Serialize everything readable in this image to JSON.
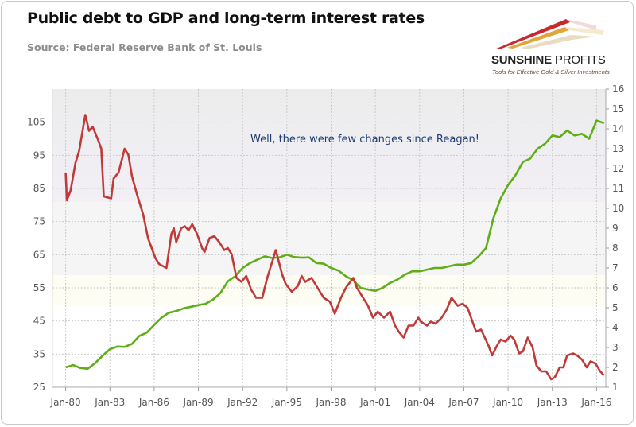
{
  "title": "Public debt to GDP and long-term interest rates",
  "source": "Source: Federal Reserve Bank of St. Louis",
  "logo": {
    "name_bold": "SUNSHINE",
    "name_light": "PROFITS",
    "tagline": "Tools for Effective Gold & Silver Investments"
  },
  "chart_data": {
    "type": "line",
    "title": "Public debt to GDP and long-term interest rates",
    "annotation": "Well, there were few changes since Reagan!",
    "x_ticks": [
      "Jan-80",
      "Jan-83",
      "Jan-86",
      "Jan-89",
      "Jan-92",
      "Jan-95",
      "Jan-98",
      "Jan-01",
      "Jan-04",
      "Jan-07",
      "Jan-10",
      "Jan-13",
      "Jan-16"
    ],
    "xlim": [
      "1980-01",
      "2016-07"
    ],
    "y_left": {
      "ylim": [
        25,
        115
      ],
      "ticks": [
        25,
        35,
        45,
        55,
        65,
        75,
        85,
        95,
        105
      ]
    },
    "y_right": {
      "ylim": [
        1,
        16
      ],
      "ticks": [
        1,
        2,
        3,
        4,
        5,
        6,
        7,
        8,
        9,
        10,
        11,
        12,
        13,
        14,
        15,
        16
      ]
    },
    "grid": true,
    "legend": "none",
    "series": [
      {
        "axis": "left",
        "color": "#5fae16",
        "points": [
          [
            "1980-01",
            31
          ],
          [
            "1980-07",
            31.7
          ],
          [
            "1981-01",
            30.8
          ],
          [
            "1981-07",
            30.6
          ],
          [
            "1982-01",
            32.3
          ],
          [
            "1982-07",
            34.5
          ],
          [
            "1983-01",
            36.5
          ],
          [
            "1983-07",
            37.3
          ],
          [
            "1984-01",
            37.2
          ],
          [
            "1984-07",
            38.1
          ],
          [
            "1985-01",
            40.5
          ],
          [
            "1985-07",
            41.5
          ],
          [
            "1986-01",
            43.8
          ],
          [
            "1986-07",
            46
          ],
          [
            "1987-01",
            47.5
          ],
          [
            "1987-07",
            48
          ],
          [
            "1988-01",
            48.8
          ],
          [
            "1988-07",
            49.3
          ],
          [
            "1989-01",
            49.8
          ],
          [
            "1989-07",
            50.2
          ],
          [
            "1990-01",
            51.5
          ],
          [
            "1990-07",
            53.5
          ],
          [
            "1991-01",
            57
          ],
          [
            "1991-07",
            58.5
          ],
          [
            "1992-01",
            61
          ],
          [
            "1992-07",
            62.5
          ],
          [
            "1993-01",
            63.5
          ],
          [
            "1993-07",
            64.5
          ],
          [
            "1994-01",
            64
          ],
          [
            "1994-07",
            64.2
          ],
          [
            "1995-01",
            65
          ],
          [
            "1995-07",
            64.3
          ],
          [
            "1996-01",
            64.1
          ],
          [
            "1996-07",
            64.2
          ],
          [
            "1997-01",
            62.5
          ],
          [
            "1997-07",
            62.3
          ],
          [
            "1998-01",
            61
          ],
          [
            "1998-07",
            60.2
          ],
          [
            "1999-01",
            58.5
          ],
          [
            "1999-07",
            57.3
          ],
          [
            "2000-01",
            55
          ],
          [
            "2000-07",
            54.5
          ],
          [
            "2001-01",
            54.1
          ],
          [
            "2001-07",
            55
          ],
          [
            "2002-01",
            56.5
          ],
          [
            "2002-07",
            57.5
          ],
          [
            "2003-01",
            59
          ],
          [
            "2003-07",
            60
          ],
          [
            "2004-01",
            60
          ],
          [
            "2004-07",
            60.5
          ],
          [
            "2005-01",
            61
          ],
          [
            "2005-07",
            61
          ],
          [
            "2006-01",
            61.5
          ],
          [
            "2006-07",
            62
          ],
          [
            "2007-01",
            62
          ],
          [
            "2007-07",
            62.5
          ],
          [
            "2008-01",
            64.5
          ],
          [
            "2008-07",
            67
          ],
          [
            "2009-01",
            76
          ],
          [
            "2009-07",
            82
          ],
          [
            "2010-01",
            86
          ],
          [
            "2010-07",
            89
          ],
          [
            "2011-01",
            93
          ],
          [
            "2011-07",
            94
          ],
          [
            "2012-01",
            97
          ],
          [
            "2012-07",
            98.5
          ],
          [
            "2013-01",
            101
          ],
          [
            "2013-07",
            100.5
          ],
          [
            "2014-01",
            102.5
          ],
          [
            "2014-07",
            101
          ],
          [
            "2015-01",
            101.5
          ],
          [
            "2015-07",
            100
          ],
          [
            "2016-01",
            105.5
          ],
          [
            "2016-07",
            104.7
          ]
        ]
      },
      {
        "axis": "right",
        "color": "#c03a3a",
        "points": [
          [
            "1980-01",
            11.8
          ],
          [
            "1980-02",
            10.4
          ],
          [
            "1980-05",
            10.9
          ],
          [
            "1980-09",
            12.3
          ],
          [
            "1980-12",
            12.9
          ],
          [
            "1981-05",
            14.7
          ],
          [
            "1981-08",
            13.9
          ],
          [
            "1981-11",
            14.1
          ],
          [
            "1982-03",
            13.5
          ],
          [
            "1982-06",
            13
          ],
          [
            "1982-08",
            10.6
          ],
          [
            "1983-02",
            10.5
          ],
          [
            "1983-04",
            11.5
          ],
          [
            "1983-08",
            11.8
          ],
          [
            "1984-01",
            13
          ],
          [
            "1984-04",
            12.7
          ],
          [
            "1984-07",
            11.6
          ],
          [
            "1984-11",
            10.7
          ],
          [
            "1985-04",
            9.7
          ],
          [
            "1985-08",
            8.5
          ],
          [
            "1986-02",
            7.5
          ],
          [
            "1986-05",
            7.2
          ],
          [
            "1986-11",
            7
          ],
          [
            "1987-03",
            8.7
          ],
          [
            "1987-05",
            9
          ],
          [
            "1987-07",
            8.3
          ],
          [
            "1987-11",
            9
          ],
          [
            "1988-02",
            9.1
          ],
          [
            "1988-05",
            8.9
          ],
          [
            "1988-08",
            9.2
          ],
          [
            "1988-12",
            8.7
          ],
          [
            "1989-04",
            8
          ],
          [
            "1989-06",
            7.8
          ],
          [
            "1989-10",
            8.5
          ],
          [
            "1990-02",
            8.6
          ],
          [
            "1990-06",
            8.3
          ],
          [
            "1990-10",
            7.9
          ],
          [
            "1991-01",
            8
          ],
          [
            "1991-04",
            7.7
          ],
          [
            "1991-08",
            6.5
          ],
          [
            "1991-12",
            6.3
          ],
          [
            "1992-04",
            6.6
          ],
          [
            "1992-08",
            5.9
          ],
          [
            "1992-12",
            5.5
          ],
          [
            "1993-05",
            5.5
          ],
          [
            "1993-09",
            6.5
          ],
          [
            "1994-01",
            7.3
          ],
          [
            "1994-04",
            7.9
          ],
          [
            "1994-09",
            6.7
          ],
          [
            "1994-12",
            6.2
          ],
          [
            "1995-05",
            5.8
          ],
          [
            "1995-10",
            6.1
          ],
          [
            "1996-01",
            6.6
          ],
          [
            "1996-04",
            6.3
          ],
          [
            "1996-09",
            6.5
          ],
          [
            "1997-02",
            6
          ],
          [
            "1997-07",
            5.5
          ],
          [
            "1997-12",
            5.3
          ],
          [
            "1998-04",
            4.7
          ],
          [
            "1998-09",
            5.5
          ],
          [
            "1999-01",
            6
          ],
          [
            "1999-07",
            6.5
          ],
          [
            "1999-10",
            6
          ],
          [
            "2000-03",
            5.5
          ],
          [
            "2000-07",
            5.1
          ],
          [
            "2000-11",
            4.5
          ],
          [
            "2001-03",
            4.8
          ],
          [
            "2001-08",
            4.5
          ],
          [
            "2002-01",
            4.8
          ],
          [
            "2002-05",
            4.1
          ],
          [
            "2002-08",
            3.8
          ],
          [
            "2002-12",
            3.5
          ],
          [
            "2003-04",
            4.1
          ],
          [
            "2003-08",
            4.1
          ],
          [
            "2003-12",
            4.5
          ],
          [
            "2004-02",
            4.3
          ],
          [
            "2004-07",
            4.1
          ],
          [
            "2004-10",
            4.3
          ],
          [
            "2005-02",
            4.2
          ],
          [
            "2005-07",
            4.5
          ],
          [
            "2005-11",
            4.9
          ],
          [
            "2006-03",
            5.5
          ],
          [
            "2006-08",
            5.1
          ],
          [
            "2006-12",
            5.2
          ],
          [
            "2007-04",
            5
          ],
          [
            "2007-08",
            4.3
          ],
          [
            "2007-11",
            3.8
          ],
          [
            "2008-03",
            3.9
          ],
          [
            "2008-09",
            3.1
          ],
          [
            "2008-12",
            2.6
          ],
          [
            "2009-04",
            3.1
          ],
          [
            "2009-07",
            3.4
          ],
          [
            "2009-11",
            3.3
          ],
          [
            "2010-03",
            3.6
          ],
          [
            "2010-06",
            3.4
          ],
          [
            "2010-10",
            2.7
          ],
          [
            "2011-01",
            2.8
          ],
          [
            "2011-05",
            3.5
          ],
          [
            "2011-09",
            3
          ],
          [
            "2011-12",
            2.1
          ],
          [
            "2012-04",
            1.8
          ],
          [
            "2012-08",
            1.8
          ],
          [
            "2012-12",
            1.4
          ],
          [
            "2013-03",
            1.5
          ],
          [
            "2013-07",
            2
          ],
          [
            "2013-10",
            2
          ],
          [
            "2014-01",
            2.6
          ],
          [
            "2014-06",
            2.7
          ],
          [
            "2014-09",
            2.6
          ],
          [
            "2015-01",
            2.4
          ],
          [
            "2015-05",
            2
          ],
          [
            "2015-08",
            2.3
          ],
          [
            "2015-12",
            2.2
          ],
          [
            "2016-04",
            1.8
          ],
          [
            "2016-07",
            1.6
          ]
        ]
      }
    ]
  }
}
